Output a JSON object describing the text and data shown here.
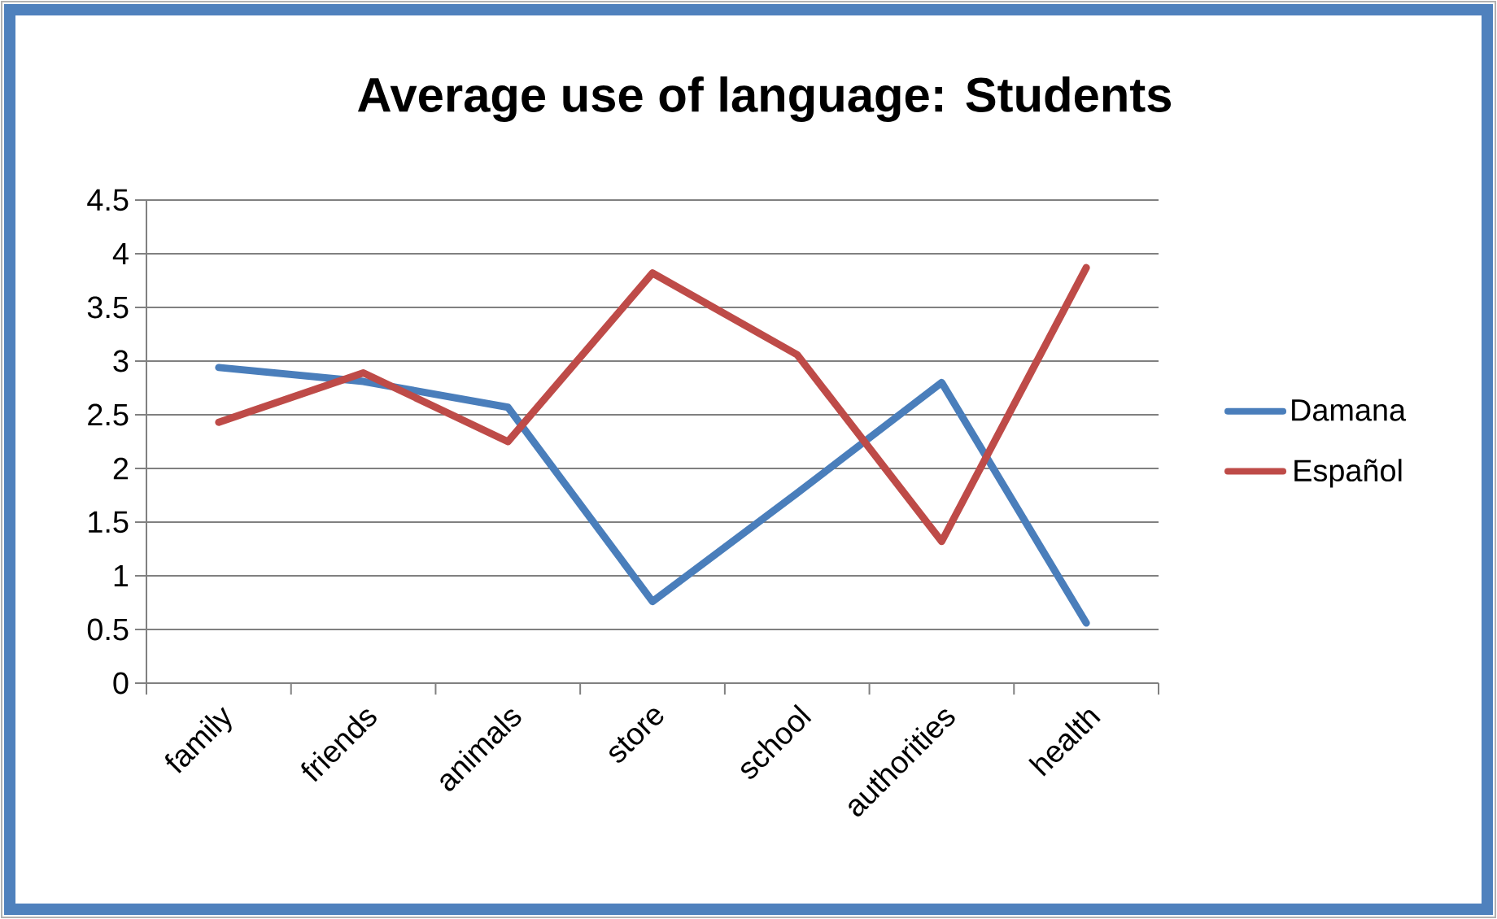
{
  "chart_data": {
    "type": "line",
    "title": "Average use of language: Students",
    "categories": [
      "family",
      "friends",
      "animals",
      "store",
      "school",
      "authorities",
      "health"
    ],
    "series": [
      {
        "name": "Damana",
        "color": "#4a7ebb",
        "values": [
          2.94,
          2.81,
          2.57,
          0.76,
          1.77,
          2.8,
          0.56
        ]
      },
      {
        "name": "Español",
        "color": "#be4b48",
        "values": [
          2.43,
          2.89,
          2.25,
          3.82,
          3.06,
          1.32,
          3.87
        ]
      }
    ],
    "ylim": [
      0,
      4.5
    ],
    "yticks": [
      0,
      0.5,
      1,
      1.5,
      2,
      2.5,
      3,
      3.5,
      4,
      4.5
    ],
    "grid": "y",
    "legend": "right",
    "marker": "none",
    "line_style": "solid"
  }
}
